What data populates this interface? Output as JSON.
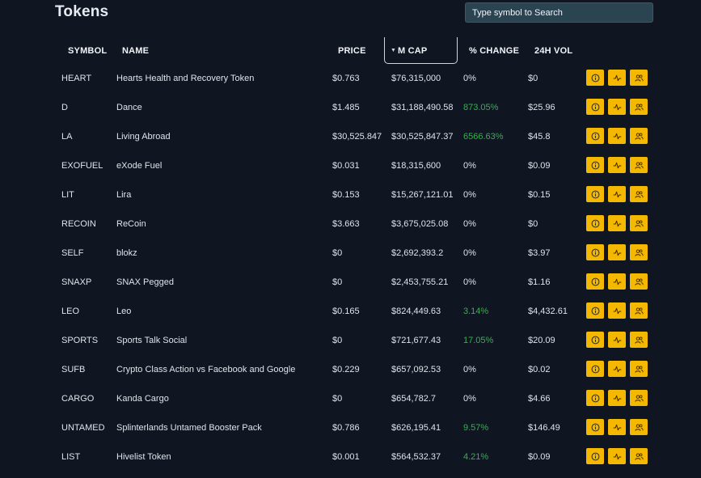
{
  "title": "Tokens",
  "search": {
    "placeholder": "Type symbol to Search"
  },
  "columns": {
    "symbol": "SYMBOL",
    "name": "NAME",
    "price": "PRICE",
    "mcap": "M CAP",
    "change": "% CHANGE",
    "vol": "24H VOL"
  },
  "colors": {
    "accent": "#f5b800",
    "positive": "#2fb54b",
    "background": "#0f1521"
  },
  "action_icons": [
    "info-icon",
    "activity-icon",
    "users-icon"
  ],
  "rows": [
    {
      "symbol": "HEART",
      "name": "Hearts Health and Recovery Token",
      "price": "$0.763",
      "mcap": "$76,315,000",
      "change": "0%",
      "vol": "$0",
      "positive": false
    },
    {
      "symbol": "D",
      "name": "Dance",
      "price": "$1.485",
      "mcap": "$31,188,490.58",
      "change": "873.05%",
      "vol": "$25.96",
      "positive": true
    },
    {
      "symbol": "LA",
      "name": "Living Abroad",
      "price": "$30,525.847",
      "mcap": "$30,525,847.37",
      "change": "6566.63%",
      "vol": "$45.8",
      "positive": true
    },
    {
      "symbol": "EXOFUEL",
      "name": "eXode Fuel",
      "price": "$0.031",
      "mcap": "$18,315,600",
      "change": "0%",
      "vol": "$0.09",
      "positive": false
    },
    {
      "symbol": "LIT",
      "name": "Lira",
      "price": "$0.153",
      "mcap": "$15,267,121.01",
      "change": "0%",
      "vol": "$0.15",
      "positive": false
    },
    {
      "symbol": "RECOIN",
      "name": "ReCoin",
      "price": "$3.663",
      "mcap": "$3,675,025.08",
      "change": "0%",
      "vol": "$0",
      "positive": false
    },
    {
      "symbol": "SELF",
      "name": "blokz",
      "price": "$0",
      "mcap": "$2,692,393.2",
      "change": "0%",
      "vol": "$3.97",
      "positive": false
    },
    {
      "symbol": "SNAXP",
      "name": "SNAX Pegged",
      "price": "$0",
      "mcap": "$2,453,755.21",
      "change": "0%",
      "vol": "$1.16",
      "positive": false
    },
    {
      "symbol": "LEO",
      "name": "Leo",
      "price": "$0.165",
      "mcap": "$824,449.63",
      "change": "3.14%",
      "vol": "$4,432.61",
      "positive": true
    },
    {
      "symbol": "SPORTS",
      "name": "Sports Talk Social",
      "price": "$0",
      "mcap": "$721,677.43",
      "change": "17.05%",
      "vol": "$20.09",
      "positive": true
    },
    {
      "symbol": "SUFB",
      "name": "Crypto Class Action vs Facebook and Google",
      "price": "$0.229",
      "mcap": "$657,092.53",
      "change": "0%",
      "vol": "$0.02",
      "positive": false
    },
    {
      "symbol": "CARGO",
      "name": "Kanda Cargo",
      "price": "$0",
      "mcap": "$654,782.7",
      "change": "0%",
      "vol": "$4.66",
      "positive": false
    },
    {
      "symbol": "UNTAMED",
      "name": "Splinterlands Untamed Booster Pack",
      "price": "$0.786",
      "mcap": "$626,195.41",
      "change": "9.57%",
      "vol": "$146.49",
      "positive": true
    },
    {
      "symbol": "LIST",
      "name": "Hivelist Token",
      "price": "$0.001",
      "mcap": "$564,532.37",
      "change": "4.21%",
      "vol": "$0.09",
      "positive": true
    }
  ]
}
